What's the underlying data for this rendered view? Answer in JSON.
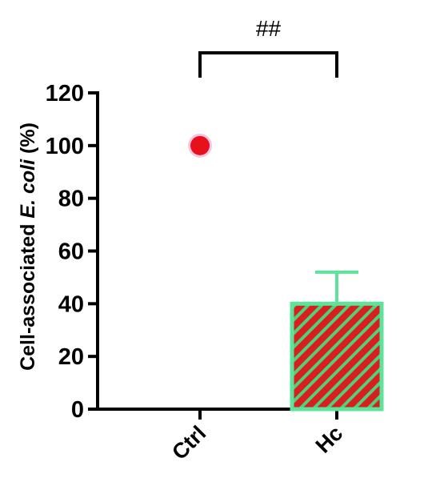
{
  "chart_data": {
    "type": "bar",
    "categories": [
      "Ctrl",
      "Hc"
    ],
    "series": [
      {
        "values": [
          100,
          40
        ],
        "errors": [
          null,
          12
        ],
        "display": [
          "point",
          "bar"
        ]
      }
    ],
    "ylabel_parts": [
      "Cell-associated ",
      "E. coli",
      " (%)"
    ],
    "ylim": [
      0,
      120
    ],
    "yticks": [
      0,
      20,
      40,
      60,
      80,
      100,
      120
    ],
    "significance": {
      "from": "Ctrl",
      "to": "Hc",
      "label": "##"
    },
    "grid": false,
    "legend": "none",
    "colors": {
      "point": "#e8101a",
      "point_halo": "#f5c6e6",
      "bar_fill": "#d81e1e",
      "bar_hatch": "#4fd07a",
      "bar_outline": "#5de39a",
      "axis": "#000000"
    }
  }
}
